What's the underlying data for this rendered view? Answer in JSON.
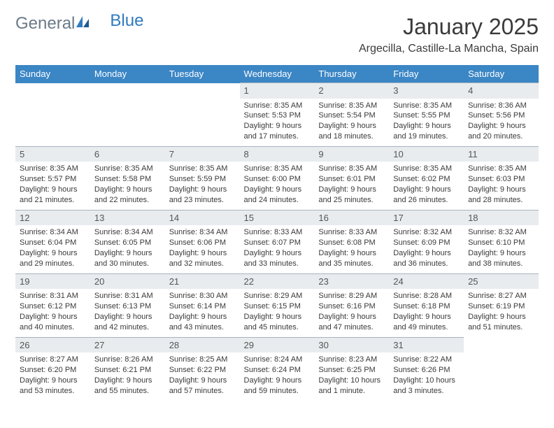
{
  "logo": {
    "general": "General",
    "blue": "Blue"
  },
  "title": "January 2025",
  "location": "Argecilla, Castille-La Mancha, Spain",
  "colors": {
    "header_bg": "#3b86c5",
    "daybar_bg": "#e8ecef",
    "border": "#a8b4bf",
    "text": "#3a3a3a",
    "logo_gray": "#6b7a88",
    "logo_blue": "#2f7bbf"
  },
  "weekdays": [
    "Sunday",
    "Monday",
    "Tuesday",
    "Wednesday",
    "Thursday",
    "Friday",
    "Saturday"
  ],
  "weeks": [
    [
      null,
      null,
      null,
      {
        "n": "1",
        "sr": "Sunrise: 8:35 AM",
        "ss": "Sunset: 5:53 PM",
        "d1": "Daylight: 9 hours",
        "d2": "and 17 minutes."
      },
      {
        "n": "2",
        "sr": "Sunrise: 8:35 AM",
        "ss": "Sunset: 5:54 PM",
        "d1": "Daylight: 9 hours",
        "d2": "and 18 minutes."
      },
      {
        "n": "3",
        "sr": "Sunrise: 8:35 AM",
        "ss": "Sunset: 5:55 PM",
        "d1": "Daylight: 9 hours",
        "d2": "and 19 minutes."
      },
      {
        "n": "4",
        "sr": "Sunrise: 8:36 AM",
        "ss": "Sunset: 5:56 PM",
        "d1": "Daylight: 9 hours",
        "d2": "and 20 minutes."
      }
    ],
    [
      {
        "n": "5",
        "sr": "Sunrise: 8:35 AM",
        "ss": "Sunset: 5:57 PM",
        "d1": "Daylight: 9 hours",
        "d2": "and 21 minutes."
      },
      {
        "n": "6",
        "sr": "Sunrise: 8:35 AM",
        "ss": "Sunset: 5:58 PM",
        "d1": "Daylight: 9 hours",
        "d2": "and 22 minutes."
      },
      {
        "n": "7",
        "sr": "Sunrise: 8:35 AM",
        "ss": "Sunset: 5:59 PM",
        "d1": "Daylight: 9 hours",
        "d2": "and 23 minutes."
      },
      {
        "n": "8",
        "sr": "Sunrise: 8:35 AM",
        "ss": "Sunset: 6:00 PM",
        "d1": "Daylight: 9 hours",
        "d2": "and 24 minutes."
      },
      {
        "n": "9",
        "sr": "Sunrise: 8:35 AM",
        "ss": "Sunset: 6:01 PM",
        "d1": "Daylight: 9 hours",
        "d2": "and 25 minutes."
      },
      {
        "n": "10",
        "sr": "Sunrise: 8:35 AM",
        "ss": "Sunset: 6:02 PM",
        "d1": "Daylight: 9 hours",
        "d2": "and 26 minutes."
      },
      {
        "n": "11",
        "sr": "Sunrise: 8:35 AM",
        "ss": "Sunset: 6:03 PM",
        "d1": "Daylight: 9 hours",
        "d2": "and 28 minutes."
      }
    ],
    [
      {
        "n": "12",
        "sr": "Sunrise: 8:34 AM",
        "ss": "Sunset: 6:04 PM",
        "d1": "Daylight: 9 hours",
        "d2": "and 29 minutes."
      },
      {
        "n": "13",
        "sr": "Sunrise: 8:34 AM",
        "ss": "Sunset: 6:05 PM",
        "d1": "Daylight: 9 hours",
        "d2": "and 30 minutes."
      },
      {
        "n": "14",
        "sr": "Sunrise: 8:34 AM",
        "ss": "Sunset: 6:06 PM",
        "d1": "Daylight: 9 hours",
        "d2": "and 32 minutes."
      },
      {
        "n": "15",
        "sr": "Sunrise: 8:33 AM",
        "ss": "Sunset: 6:07 PM",
        "d1": "Daylight: 9 hours",
        "d2": "and 33 minutes."
      },
      {
        "n": "16",
        "sr": "Sunrise: 8:33 AM",
        "ss": "Sunset: 6:08 PM",
        "d1": "Daylight: 9 hours",
        "d2": "and 35 minutes."
      },
      {
        "n": "17",
        "sr": "Sunrise: 8:32 AM",
        "ss": "Sunset: 6:09 PM",
        "d1": "Daylight: 9 hours",
        "d2": "and 36 minutes."
      },
      {
        "n": "18",
        "sr": "Sunrise: 8:32 AM",
        "ss": "Sunset: 6:10 PM",
        "d1": "Daylight: 9 hours",
        "d2": "and 38 minutes."
      }
    ],
    [
      {
        "n": "19",
        "sr": "Sunrise: 8:31 AM",
        "ss": "Sunset: 6:12 PM",
        "d1": "Daylight: 9 hours",
        "d2": "and 40 minutes."
      },
      {
        "n": "20",
        "sr": "Sunrise: 8:31 AM",
        "ss": "Sunset: 6:13 PM",
        "d1": "Daylight: 9 hours",
        "d2": "and 42 minutes."
      },
      {
        "n": "21",
        "sr": "Sunrise: 8:30 AM",
        "ss": "Sunset: 6:14 PM",
        "d1": "Daylight: 9 hours",
        "d2": "and 43 minutes."
      },
      {
        "n": "22",
        "sr": "Sunrise: 8:29 AM",
        "ss": "Sunset: 6:15 PM",
        "d1": "Daylight: 9 hours",
        "d2": "and 45 minutes."
      },
      {
        "n": "23",
        "sr": "Sunrise: 8:29 AM",
        "ss": "Sunset: 6:16 PM",
        "d1": "Daylight: 9 hours",
        "d2": "and 47 minutes."
      },
      {
        "n": "24",
        "sr": "Sunrise: 8:28 AM",
        "ss": "Sunset: 6:18 PM",
        "d1": "Daylight: 9 hours",
        "d2": "and 49 minutes."
      },
      {
        "n": "25",
        "sr": "Sunrise: 8:27 AM",
        "ss": "Sunset: 6:19 PM",
        "d1": "Daylight: 9 hours",
        "d2": "and 51 minutes."
      }
    ],
    [
      {
        "n": "26",
        "sr": "Sunrise: 8:27 AM",
        "ss": "Sunset: 6:20 PM",
        "d1": "Daylight: 9 hours",
        "d2": "and 53 minutes."
      },
      {
        "n": "27",
        "sr": "Sunrise: 8:26 AM",
        "ss": "Sunset: 6:21 PM",
        "d1": "Daylight: 9 hours",
        "d2": "and 55 minutes."
      },
      {
        "n": "28",
        "sr": "Sunrise: 8:25 AM",
        "ss": "Sunset: 6:22 PM",
        "d1": "Daylight: 9 hours",
        "d2": "and 57 minutes."
      },
      {
        "n": "29",
        "sr": "Sunrise: 8:24 AM",
        "ss": "Sunset: 6:24 PM",
        "d1": "Daylight: 9 hours",
        "d2": "and 59 minutes."
      },
      {
        "n": "30",
        "sr": "Sunrise: 8:23 AM",
        "ss": "Sunset: 6:25 PM",
        "d1": "Daylight: 10 hours",
        "d2": "and 1 minute."
      },
      {
        "n": "31",
        "sr": "Sunrise: 8:22 AM",
        "ss": "Sunset: 6:26 PM",
        "d1": "Daylight: 10 hours",
        "d2": "and 3 minutes."
      },
      null
    ]
  ]
}
